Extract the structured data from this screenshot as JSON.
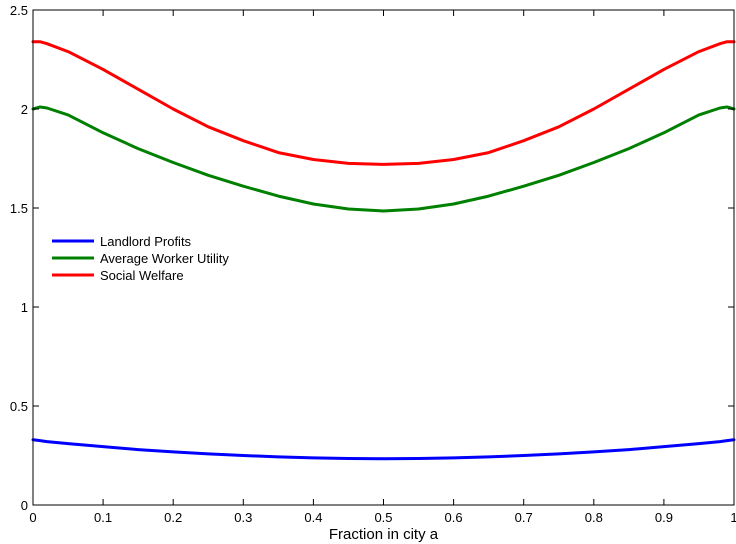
{
  "chart_data": {
    "type": "line",
    "title": "",
    "xlabel": "Fraction in city a",
    "ylabel": "",
    "xlim": [
      0,
      1
    ],
    "ylim": [
      0,
      2.5
    ],
    "grid": false,
    "legend_position": "middle-left",
    "x_ticks": [
      "0",
      "0.1",
      "0.2",
      "0.3",
      "0.4",
      "0.5",
      "0.6",
      "0.7",
      "0.8",
      "0.9",
      "1"
    ],
    "y_ticks": [
      "0",
      "0.5",
      "1",
      "1.5",
      "2",
      "2.5"
    ],
    "x": [
      0,
      0.01,
      0.02,
      0.05,
      0.1,
      0.15,
      0.2,
      0.25,
      0.3,
      0.35,
      0.4,
      0.45,
      0.5,
      0.55,
      0.6,
      0.65,
      0.7,
      0.75,
      0.8,
      0.85,
      0.9,
      0.95,
      0.98,
      0.99,
      1
    ],
    "series": [
      {
        "name": "Landlord Profits",
        "color": "#0000ff",
        "values": [
          0.33,
          0.325,
          0.32,
          0.31,
          0.295,
          0.28,
          0.268,
          0.258,
          0.25,
          0.243,
          0.238,
          0.235,
          0.234,
          0.235,
          0.238,
          0.243,
          0.25,
          0.258,
          0.268,
          0.28,
          0.295,
          0.31,
          0.32,
          0.325,
          0.33
        ]
      },
      {
        "name": "Average Worker Utility",
        "color": "#008000",
        "values": [
          2.0,
          2.01,
          2.005,
          1.97,
          1.88,
          1.8,
          1.73,
          1.665,
          1.61,
          1.56,
          1.52,
          1.495,
          1.485,
          1.495,
          1.52,
          1.56,
          1.61,
          1.665,
          1.73,
          1.8,
          1.88,
          1.97,
          2.005,
          2.01,
          2.0
        ]
      },
      {
        "name": "Social Welfare",
        "color": "#ff0000",
        "values": [
          2.34,
          2.34,
          2.33,
          2.29,
          2.2,
          2.1,
          2.0,
          1.91,
          1.84,
          1.78,
          1.745,
          1.725,
          1.72,
          1.725,
          1.745,
          1.78,
          1.84,
          1.91,
          2.0,
          2.1,
          2.2,
          2.29,
          2.33,
          2.34,
          2.34
        ]
      }
    ]
  }
}
